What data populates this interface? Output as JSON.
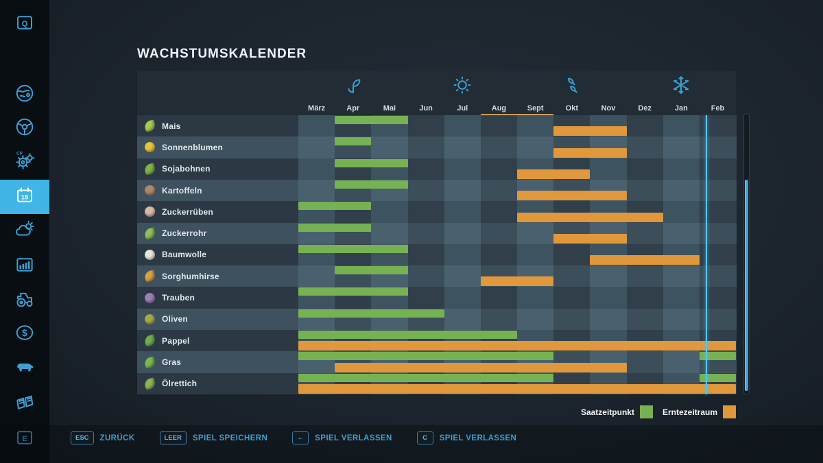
{
  "title": "WACHSTUMSKALENDER",
  "sidebar": {
    "items": [
      {
        "name": "help",
        "icon": "key-q-icon",
        "selected": false
      },
      {
        "name": "map",
        "icon": "globe-icon",
        "selected": false
      },
      {
        "name": "vehicles",
        "icon": "steering-wheel-icon",
        "selected": false
      },
      {
        "name": "courseplay",
        "icon": "gears-cp-icon",
        "selected": false,
        "badge": "CP"
      },
      {
        "name": "calendar",
        "icon": "calendar-icon",
        "selected": true,
        "badge": "15"
      },
      {
        "name": "weather",
        "icon": "weather-icon",
        "selected": false
      },
      {
        "name": "statistics",
        "icon": "bar-chart-icon",
        "selected": false
      },
      {
        "name": "garage",
        "icon": "tractor-icon",
        "selected": false
      },
      {
        "name": "finances",
        "icon": "dollar-icon",
        "selected": false
      },
      {
        "name": "animals",
        "icon": "cow-icon",
        "selected": false
      },
      {
        "name": "contracts",
        "icon": "book-icon",
        "selected": false
      },
      {
        "name": "action",
        "icon": "key-e-icon",
        "selected": false
      }
    ]
  },
  "calendar": {
    "months": [
      "März",
      "Apr",
      "Mai",
      "Jun",
      "Jul",
      "Aug",
      "Sept",
      "Okt",
      "Nov",
      "Dez",
      "Jan",
      "Feb"
    ],
    "seasons": [
      {
        "icon": "sprout-icon",
        "month_index": 1
      },
      {
        "icon": "sun-icon",
        "month_index": 4
      },
      {
        "icon": "autumn-leaves-icon",
        "month_index": 7
      },
      {
        "icon": "snowflake-icon",
        "month_index": 10
      }
    ],
    "month_underline": {
      "start": 5,
      "end": 7,
      "color": "#c89a5a"
    },
    "current_date_month_position": 11.17,
    "colors": {
      "sow": "#76b254",
      "harvest": "#e1973b",
      "cell_dark_row_dark_col": "#313f4a",
      "cell_dark_row_light_col": "#3e5360",
      "cell_light_row_dark_col": "#3b4e5a",
      "cell_light_row_light_col": "#49616f",
      "label_dark_row": "#2c3944",
      "label_light_row": "#3e515e"
    },
    "crops": [
      {
        "name": "Mais",
        "icon": "corn-icon",
        "icon_color": "#a9c94f",
        "icon_shape": "leaf",
        "sow": [
          [
            1,
            3
          ]
        ],
        "harvest": [
          [
            7,
            9
          ]
        ]
      },
      {
        "name": "Sonnenblumen",
        "icon": "sunflower-icon",
        "icon_color": "#e5c53e",
        "icon_shape": "round",
        "sow": [
          [
            1,
            2
          ]
        ],
        "harvest": [
          [
            7,
            9
          ]
        ]
      },
      {
        "name": "Sojabohnen",
        "icon": "soybean-icon",
        "icon_color": "#7fb347",
        "icon_shape": "leaf",
        "sow": [
          [
            1,
            3
          ]
        ],
        "harvest": [
          [
            6,
            8
          ]
        ]
      },
      {
        "name": "Kartoffeln",
        "icon": "potato-icon",
        "icon_color": "#b08968",
        "icon_shape": "tuber",
        "sow": [
          [
            1,
            3
          ]
        ],
        "harvest": [
          [
            6,
            9
          ]
        ]
      },
      {
        "name": "Zuckerrüben",
        "icon": "sugarbeet-icon",
        "icon_color": "#d8b9a6",
        "icon_shape": "tuber",
        "sow": [
          [
            0,
            2
          ]
        ],
        "harvest": [
          [
            6,
            10
          ]
        ]
      },
      {
        "name": "Zuckerrohr",
        "icon": "sugarcane-icon",
        "icon_color": "#8fbf5a",
        "icon_shape": "leaf",
        "sow": [
          [
            0,
            2
          ]
        ],
        "harvest": [
          [
            7,
            9
          ]
        ]
      },
      {
        "name": "Baumwolle",
        "icon": "cotton-icon",
        "icon_color": "#e9e4db",
        "icon_shape": "round",
        "sow": [
          [
            0,
            3
          ]
        ],
        "harvest": [
          [
            8,
            11
          ]
        ]
      },
      {
        "name": "Sorghumhirse",
        "icon": "sorghum-icon",
        "icon_color": "#d9a13f",
        "icon_shape": "leaf",
        "sow": [
          [
            1,
            3
          ]
        ],
        "harvest": [
          [
            5,
            7
          ]
        ]
      },
      {
        "name": "Trauben",
        "icon": "grapes-icon",
        "icon_color": "#9b7fb5",
        "icon_shape": "round",
        "sow": [
          [
            0,
            3
          ]
        ],
        "harvest": []
      },
      {
        "name": "Oliven",
        "icon": "olive-icon",
        "icon_color": "#a3a84a",
        "icon_shape": "round",
        "sow": [
          [
            0,
            4
          ]
        ],
        "harvest": []
      },
      {
        "name": "Pappel",
        "icon": "poplar-icon",
        "icon_color": "#6fae4e",
        "icon_shape": "leaf",
        "sow": [
          [
            0,
            6
          ]
        ],
        "harvest": [
          [
            0,
            12
          ]
        ]
      },
      {
        "name": "Gras",
        "icon": "grass-icon",
        "icon_color": "#7db84f",
        "icon_shape": "leaf",
        "sow": [
          [
            0,
            7
          ],
          [
            11,
            12
          ]
        ],
        "harvest": [
          [
            1,
            9
          ]
        ]
      },
      {
        "name": "Ölrettich",
        "icon": "oilradish-icon",
        "icon_color": "#8cb455",
        "icon_shape": "leaf",
        "sow": [
          [
            0,
            7
          ],
          [
            11,
            12
          ]
        ],
        "harvest": [
          [
            0,
            12
          ]
        ]
      }
    ]
  },
  "legend": [
    {
      "label": "Saatzeitpunkt",
      "color": "#76b254"
    },
    {
      "label": "Erntezeitraum",
      "color": "#e1973b"
    }
  ],
  "keybar": [
    {
      "key": "ESC",
      "label": "ZURÜCK"
    },
    {
      "key": "LEER",
      "label": "SPIEL SPEICHERN"
    },
    {
      "key": "←",
      "label": "SPIEL VERLASSEN"
    },
    {
      "key": "C",
      "label": "SPIEL VERLASSEN"
    }
  ]
}
